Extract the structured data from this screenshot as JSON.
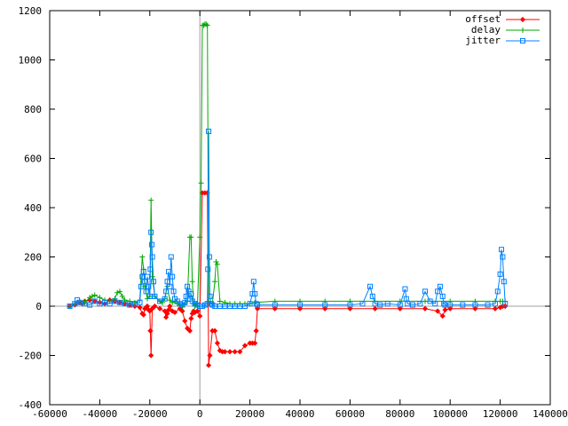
{
  "chart_data": {
    "type": "line",
    "title": "",
    "xlabel": "",
    "ylabel": "",
    "xlim": [
      -60000,
      140000
    ],
    "ylim": [
      -400,
      1200
    ],
    "xticks": [
      -60000,
      -40000,
      -20000,
      0,
      20000,
      40000,
      60000,
      80000,
      100000,
      120000,
      140000
    ],
    "yticks": [
      -400,
      -200,
      0,
      200,
      400,
      600,
      800,
      1000,
      1200
    ],
    "xtick_labels": [
      "-60000",
      "-40000",
      "-20000",
      "0",
      "20000",
      "40000",
      "60000",
      "80000",
      "100000",
      "120000",
      "140000"
    ],
    "ytick_labels": [
      "-400",
      "-200",
      "0",
      "200",
      "400",
      "600",
      "800",
      "1000",
      "1200"
    ],
    "zero_axes": true,
    "grid": false,
    "legend_position": "top-right",
    "series": [
      {
        "name": "offset",
        "color": "#ff0000",
        "marker": "diamond",
        "x": [
          -52000,
          -50000,
          -48000,
          -47000,
          -46000,
          -44000,
          -42000,
          -40000,
          -38000,
          -36000,
          -34000,
          -32000,
          -30000,
          -28000,
          -26000,
          -24000,
          -23000,
          -22500,
          -22000,
          -21000,
          -20500,
          -20000,
          -19800,
          -19500,
          -19000,
          -18000,
          -16000,
          -14000,
          -13500,
          -13000,
          -12500,
          -12000,
          -11000,
          -10000,
          -8000,
          -7000,
          -6000,
          -5000,
          -4000,
          -3500,
          -3000,
          -2500,
          -2000,
          -1000,
          0,
          1000,
          2000,
          3000,
          3500,
          4000,
          5000,
          6000,
          7000,
          8000,
          9000,
          10000,
          12000,
          14000,
          16000,
          18000,
          20000,
          21000,
          22000,
          22500,
          23000,
          30000,
          40000,
          50000,
          60000,
          70000,
          80000,
          90000,
          95000,
          97000,
          98000,
          100000,
          110000,
          118000,
          120000,
          121000,
          122000
        ],
        "y": [
          0,
          5,
          15,
          10,
          20,
          25,
          20,
          15,
          10,
          25,
          20,
          15,
          10,
          5,
          0,
          -5,
          -30,
          -35,
          -10,
          0,
          -15,
          -20,
          -100,
          -200,
          -10,
          0,
          -10,
          -20,
          -45,
          -30,
          -15,
          0,
          -20,
          -25,
          -10,
          -20,
          -60,
          -90,
          -100,
          -50,
          -30,
          -20,
          -25,
          -20,
          -40,
          460,
          460,
          460,
          -240,
          -200,
          -100,
          -100,
          -150,
          -180,
          -185,
          -185,
          -185,
          -185,
          -185,
          -160,
          -150,
          -150,
          -150,
          -100,
          -10,
          -10,
          -10,
          -10,
          -10,
          -10,
          -10,
          -10,
          -20,
          -40,
          -15,
          -10,
          -10,
          -10,
          -5,
          0,
          0
        ]
      },
      {
        "name": "delay",
        "color": "#00aa00",
        "marker": "plus",
        "x": [
          -52000,
          -50000,
          -48000,
          -46000,
          -44000,
          -43000,
          -42000,
          -40000,
          -38000,
          -36000,
          -34000,
          -33000,
          -32000,
          -31000,
          -30000,
          -28000,
          -26000,
          -24000,
          -23000,
          -22500,
          -22000,
          -21000,
          -20000,
          -19500,
          -19000,
          -18000,
          -16000,
          -15000,
          -14000,
          -13000,
          -12000,
          -11000,
          -10000,
          -9000,
          -8000,
          -7000,
          -6000,
          -5000,
          -4000,
          -3500,
          -3000,
          -2500,
          -2000,
          -1500,
          -1000,
          0,
          500,
          1000,
          1500,
          2000,
          2500,
          3000,
          3500,
          4000,
          5000,
          6000,
          6500,
          7000,
          8000,
          10000,
          12000,
          14000,
          16000,
          18000,
          20000,
          22000,
          30000,
          40000,
          50000,
          60000,
          70000,
          80000,
          90000,
          100000,
          110000,
          118000,
          120000,
          121000,
          122000
        ],
        "y": [
          0,
          10,
          20,
          15,
          35,
          40,
          45,
          35,
          25,
          20,
          30,
          55,
          60,
          40,
          25,
          20,
          15,
          25,
          200,
          150,
          80,
          30,
          40,
          430,
          120,
          40,
          20,
          15,
          30,
          80,
          25,
          15,
          20,
          10,
          5,
          0,
          10,
          20,
          280,
          280,
          100,
          10,
          0,
          10,
          0,
          280,
          500,
          1140,
          1140,
          1145,
          1145,
          1140,
          20,
          10,
          10,
          100,
          180,
          170,
          20,
          15,
          10,
          10,
          10,
          10,
          10,
          15,
          20,
          20,
          20,
          20,
          20,
          20,
          20,
          20,
          20,
          20,
          20,
          20,
          20
        ]
      },
      {
        "name": "jitter",
        "color": "#0080ff",
        "marker": "square",
        "x": [
          -52000,
          -50000,
          -49000,
          -48000,
          -46000,
          -44000,
          -42000,
          -40000,
          -38000,
          -36000,
          -34000,
          -32000,
          -30000,
          -28000,
          -26000,
          -24000,
          -23500,
          -23000,
          -22500,
          -22000,
          -21500,
          -21000,
          -20500,
          -20000,
          -19800,
          -19500,
          -19200,
          -19000,
          -18500,
          -18000,
          -16000,
          -14000,
          -13500,
          -13000,
          -12500,
          -12000,
          -11500,
          -11000,
          -10500,
          -10000,
          -9000,
          -8000,
          -7000,
          -6000,
          -5500,
          -5000,
          -4500,
          -4000,
          -3500,
          -3000,
          -2000,
          -1000,
          0,
          1000,
          2000,
          3000,
          3200,
          3500,
          3800,
          4000,
          4500,
          5000,
          6000,
          8000,
          10000,
          12000,
          14000,
          16000,
          18000,
          20000,
          21000,
          21500,
          22000,
          22500,
          23000,
          30000,
          40000,
          50000,
          60000,
          65000,
          68000,
          69000,
          70000,
          72000,
          75000,
          80000,
          82000,
          82500,
          83000,
          85000,
          88000,
          90000,
          92000,
          94000,
          95000,
          96000,
          97000,
          97500,
          98000,
          100000,
          105000,
          110000,
          115000,
          118000,
          119000,
          120000,
          120500,
          121000,
          121500,
          122000
        ],
        "y": [
          0,
          10,
          25,
          15,
          10,
          5,
          20,
          10,
          15,
          10,
          20,
          15,
          10,
          5,
          10,
          15,
          80,
          120,
          140,
          100,
          60,
          120,
          80,
          40,
          150,
          300,
          250,
          200,
          100,
          40,
          20,
          30,
          60,
          100,
          140,
          80,
          200,
          120,
          60,
          30,
          20,
          10,
          5,
          15,
          40,
          80,
          60,
          30,
          50,
          20,
          10,
          5,
          0,
          0,
          5,
          10,
          150,
          710,
          200,
          40,
          10,
          5,
          0,
          0,
          0,
          0,
          0,
          0,
          0,
          10,
          50,
          100,
          50,
          10,
          5,
          5,
          5,
          5,
          5,
          10,
          80,
          40,
          10,
          5,
          10,
          5,
          70,
          30,
          10,
          5,
          10,
          60,
          20,
          10,
          60,
          80,
          40,
          10,
          5,
          5,
          5,
          5,
          5,
          10,
          60,
          130,
          230,
          200,
          100,
          10
        ]
      }
    ]
  }
}
